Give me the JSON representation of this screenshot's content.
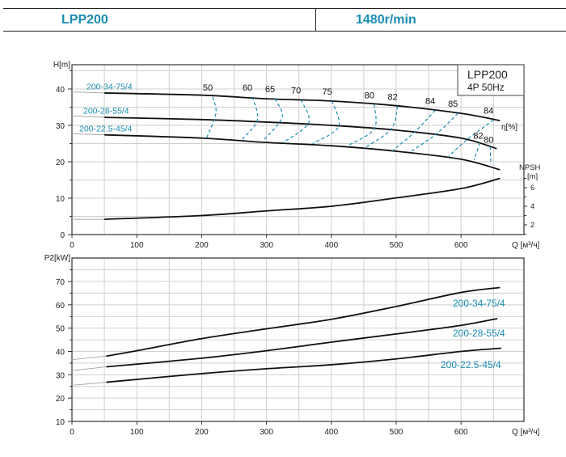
{
  "header": {
    "model": "LPP200",
    "speed": "1480r/min"
  },
  "colors": {
    "accent": "#1a8cb0",
    "curve": "#111111",
    "grid": "#cfcfcf"
  },
  "chart_data": [
    {
      "type": "line",
      "title": "LPP200",
      "subtitle": "4P  50Hz",
      "ylabel": "H[m]",
      "xlabel": "Q [м³/ч]",
      "xlim": [
        0,
        697
      ],
      "ylim": [
        0,
        46.7
      ],
      "xticks": [
        0,
        100,
        200,
        300,
        400,
        500,
        600
      ],
      "yticks": [
        0,
        10,
        20,
        30,
        40
      ],
      "grid": true,
      "y2label": "NPSH\n[m]",
      "y2label_lines": [
        "NPSH",
        "[m]"
      ],
      "y2ticks": [
        2,
        4,
        6
      ],
      "eta_label": "η[%]",
      "series": [
        {
          "name": "200-34-75/4",
          "values": [
            [
              0,
              39.2
            ],
            [
              50,
              38.9
            ],
            [
              200,
              38.3
            ],
            [
              300,
              37.3
            ],
            [
              400,
              36.7
            ],
            [
              500,
              35.4
            ],
            [
              600,
              33.3
            ],
            [
              660,
              31.3
            ]
          ]
        },
        {
          "name": "200-28-55/4",
          "values": [
            [
              0,
              32.6
            ],
            [
              50,
              32.2
            ],
            [
              200,
              31.6
            ],
            [
              300,
              30.9
            ],
            [
              400,
              30.0
            ],
            [
              500,
              28.7
            ],
            [
              600,
              26.5
            ],
            [
              655,
              23.6
            ]
          ]
        },
        {
          "name": "200-22.5-45/4",
          "values": [
            [
              0,
              27.7
            ],
            [
              50,
              27.4
            ],
            [
              200,
              26.5
            ],
            [
              300,
              25.3
            ],
            [
              400,
              24.4
            ],
            [
              500,
              22.9
            ],
            [
              600,
              20.7
            ],
            [
              660,
              17.8
            ]
          ]
        }
      ],
      "npsh": [
        [
          0,
          2.6
        ],
        [
          50,
          2.6
        ],
        [
          200,
          3.0
        ],
        [
          300,
          3.5
        ],
        [
          400,
          4.0
        ],
        [
          500,
          4.9
        ],
        [
          600,
          5.9
        ],
        [
          660,
          7.0
        ]
      ],
      "efficiency": [
        {
          "label": "50",
          "points": [
            [
              217,
              37.8
            ],
            [
              222,
              33.3
            ],
            [
              208,
              26.7
            ]
          ]
        },
        {
          "label": "60",
          "points": [
            [
              278,
              37.8
            ],
            [
              286,
              31.6
            ],
            [
              262,
              26.0
            ]
          ]
        },
        {
          "label": "65",
          "points": [
            [
              313,
              37.3
            ],
            [
              324,
              32.2
            ],
            [
              296,
              26.0
            ]
          ]
        },
        {
          "label": "70",
          "points": [
            [
              353,
              37.0
            ],
            [
              365,
              30.7
            ],
            [
              325,
              25.2
            ]
          ]
        },
        {
          "label": "75",
          "points": [
            [
              401,
              36.7
            ],
            [
              411,
              29.6
            ],
            [
              371,
              25.0
            ]
          ]
        },
        {
          "label": "80",
          "points": [
            [
              466,
              35.7
            ],
            [
              466,
              29.0
            ],
            [
              425,
              24.4
            ]
          ]
        },
        {
          "label": "82",
          "points": [
            [
              502,
              35.2
            ],
            [
              492,
              28.9
            ],
            [
              450,
              23.7
            ]
          ]
        },
        {
          "label": "84",
          "points": [
            [
              560,
              34.1
            ],
            [
              528,
              28.1
            ],
            [
              494,
              23.0
            ]
          ]
        },
        {
          "label": "85",
          "points": [
            [
              595,
              33.3
            ],
            [
              563,
              27.8
            ],
            [
              521,
              22.6
            ]
          ]
        },
        {
          "label": "84",
          "points": [
            [
              650,
              31.5
            ],
            [
              608,
              25.9
            ],
            [
              581,
              21.5
            ]
          ]
        },
        {
          "label": "82",
          "points": [
            [
              629,
              25.2
            ],
            [
              620,
              20.4
            ]
          ]
        },
        {
          "label": "80",
          "points": [
            [
              645,
              24.1
            ],
            [
              646,
              19.3
            ]
          ]
        }
      ]
    },
    {
      "type": "line",
      "ylabel": "P2[kW]",
      "xlabel": "Q [м³/ч]",
      "xlim": [
        0,
        697
      ],
      "ylim": [
        10,
        80
      ],
      "xticks": [
        0,
        100,
        200,
        300,
        400,
        500,
        600
      ],
      "yticks": [
        10,
        20,
        30,
        40,
        50,
        60,
        70
      ],
      "grid": true,
      "series": [
        {
          "name": "200-34-75/4",
          "values": [
            [
              0,
              36.5
            ],
            [
              53,
              38.0
            ],
            [
              100,
              40.3
            ],
            [
              200,
              45.5
            ],
            [
              300,
              49.7
            ],
            [
              400,
              53.8
            ],
            [
              500,
              59.3
            ],
            [
              600,
              65.3
            ],
            [
              660,
              67.4
            ]
          ]
        },
        {
          "name": "200-28-55/4",
          "values": [
            [
              0,
              31.8
            ],
            [
              53,
              33.4
            ],
            [
              200,
              37.1
            ],
            [
              300,
              40.3
            ],
            [
              400,
              44.0
            ],
            [
              500,
              47.5
            ],
            [
              600,
              51.2
            ],
            [
              656,
              54.1
            ]
          ]
        },
        {
          "name": "200-22.5-45/4",
          "values": [
            [
              0,
              25.5
            ],
            [
              53,
              26.8
            ],
            [
              200,
              30.5
            ],
            [
              300,
              32.6
            ],
            [
              400,
              34.3
            ],
            [
              500,
              36.8
            ],
            [
              600,
              40.0
            ],
            [
              662,
              41.4
            ]
          ]
        }
      ]
    }
  ]
}
